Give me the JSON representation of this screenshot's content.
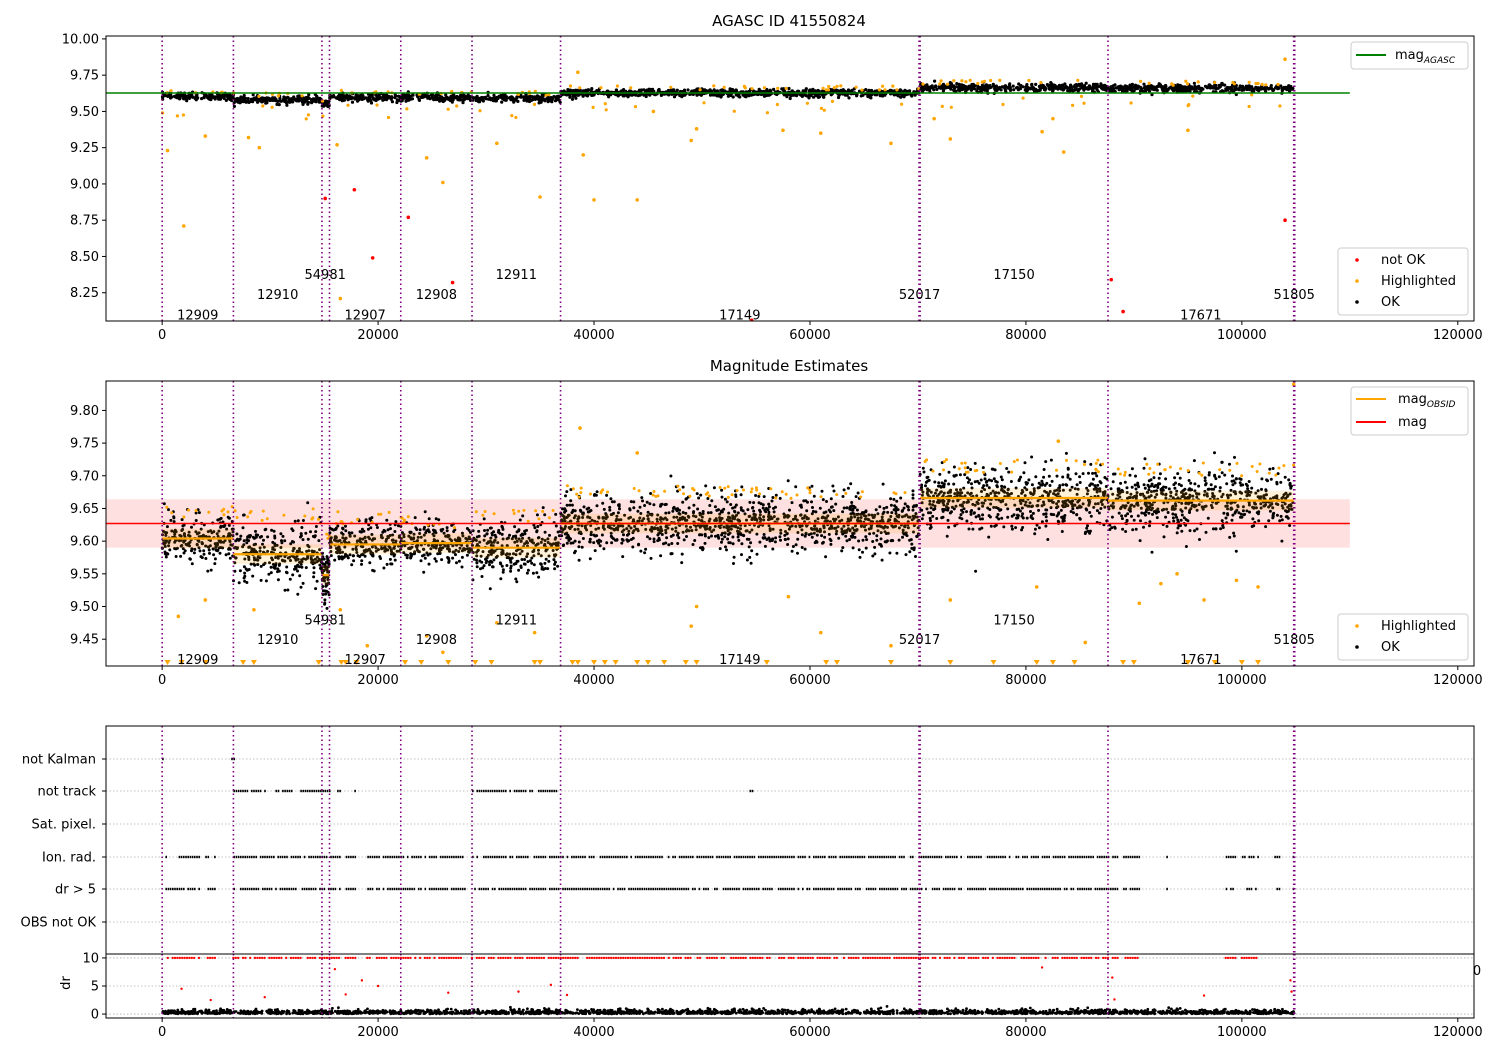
{
  "chart_data": [
    {
      "type": "scatter",
      "title": "AGASC ID 41550824",
      "xlim": [
        -5200,
        121500
      ],
      "ylim": [
        8.055,
        10.02
      ],
      "x_ticks": [
        0,
        20000,
        40000,
        60000,
        80000,
        100000,
        120000
      ],
      "y_ticks": [
        8.25,
        8.5,
        8.75,
        9.0,
        9.25,
        9.5,
        9.75,
        10.0
      ],
      "y_tick_labels": [
        "8.25",
        "8.50",
        "8.75",
        "9.00",
        "9.25",
        "9.50",
        "9.75",
        "10.00"
      ],
      "obsid_boundaries": [
        0,
        6600,
        14800,
        15500,
        22100,
        28700,
        36900,
        70100,
        70200,
        87600,
        104800,
        104900
      ],
      "obsid_labels": [
        {
          "text": "12909",
          "x": 3300,
          "y": 8.1
        },
        {
          "text": "12910",
          "x": 10700,
          "y": 8.24
        },
        {
          "text": "54981",
          "x": 15100,
          "y": 8.38
        },
        {
          "text": "12907",
          "x": 18800,
          "y": 8.1
        },
        {
          "text": "12908",
          "x": 25400,
          "y": 8.24
        },
        {
          "text": "12911",
          "x": 32800,
          "y": 8.38
        },
        {
          "text": "17149",
          "x": 53500,
          "y": 8.1
        },
        {
          "text": "52017",
          "x": 70150,
          "y": 8.24
        },
        {
          "text": "17150",
          "x": 78900,
          "y": 8.38
        },
        {
          "text": "17671",
          "x": 96200,
          "y": 8.1
        },
        {
          "text": "51805",
          "x": 104850,
          "y": 8.24
        }
      ],
      "mag_agasc": 9.627,
      "mag_agasc_xrange": [
        -5200,
        110000
      ],
      "segments": [
        {
          "x0": 0,
          "x1": 6600,
          "mean": 9.605
        },
        {
          "x0": 6600,
          "x1": 14800,
          "mean": 9.58
        },
        {
          "x0": 14800,
          "x1": 15500,
          "mean": 9.55
        },
        {
          "x0": 15500,
          "x1": 22100,
          "mean": 9.595
        },
        {
          "x0": 22100,
          "x1": 28700,
          "mean": 9.595
        },
        {
          "x0": 28700,
          "x1": 36900,
          "mean": 9.59
        },
        {
          "x0": 36900,
          "x1": 70100,
          "mean": 9.627
        },
        {
          "x0": 70200,
          "x1": 87600,
          "mean": 9.665
        },
        {
          "x0": 87600,
          "x1": 104800,
          "mean": 9.66
        }
      ],
      "highlighted_outliers": [
        {
          "x": 500,
          "y": 9.23
        },
        {
          "x": 2000,
          "y": 8.71
        },
        {
          "x": 4000,
          "y": 9.33
        },
        {
          "x": 8000,
          "y": 9.32
        },
        {
          "x": 9000,
          "y": 9.25
        },
        {
          "x": 16500,
          "y": 8.21
        },
        {
          "x": 16200,
          "y": 9.27
        },
        {
          "x": 24500,
          "y": 9.18
        },
        {
          "x": 26000,
          "y": 9.01
        },
        {
          "x": 31000,
          "y": 9.28
        },
        {
          "x": 35000,
          "y": 8.91
        },
        {
          "x": 38500,
          "y": 9.77
        },
        {
          "x": 40000,
          "y": 8.89
        },
        {
          "x": 44000,
          "y": 8.89
        },
        {
          "x": 39000,
          "y": 9.2
        },
        {
          "x": 49000,
          "y": 9.3
        },
        {
          "x": 49500,
          "y": 9.38
        },
        {
          "x": 67500,
          "y": 9.28
        },
        {
          "x": 71500,
          "y": 9.45
        },
        {
          "x": 73000,
          "y": 9.31
        },
        {
          "x": 81500,
          "y": 9.36
        },
        {
          "x": 82500,
          "y": 9.45
        },
        {
          "x": 83500,
          "y": 9.22
        },
        {
          "x": 95000,
          "y": 9.37
        },
        {
          "x": 104000,
          "y": 9.86
        },
        {
          "x": 57500,
          "y": 9.37
        },
        {
          "x": 61000,
          "y": 9.35
        },
        {
          "x": 45500,
          "y": 9.5
        }
      ],
      "not_ok_points": [
        {
          "x": 17800,
          "y": 8.96
        },
        {
          "x": 19500,
          "y": 8.49
        },
        {
          "x": 22800,
          "y": 8.77
        },
        {
          "x": 26900,
          "y": 8.32
        },
        {
          "x": 15100,
          "y": 8.9
        },
        {
          "x": 54600,
          "y": 8.06
        },
        {
          "x": 87900,
          "y": 8.34
        },
        {
          "x": 89000,
          "y": 8.12
        },
        {
          "x": 104000,
          "y": 8.75
        }
      ],
      "legend_top": {
        "position": "top-right",
        "entries": [
          {
            "name": "mag",
            "sub": "AGASC",
            "color": "#008000"
          }
        ]
      },
      "legend_bottom": {
        "position": "lower-right",
        "entries": [
          {
            "name": "not OK",
            "color": "#ff0000"
          },
          {
            "name": "Highlighted",
            "color": "#ffa500"
          },
          {
            "name": "OK",
            "color": "#000000"
          }
        ]
      }
    },
    {
      "type": "scatter",
      "title": "Magnitude Estimates",
      "xlim": [
        -5200,
        121500
      ],
      "ylim": [
        9.409,
        9.845
      ],
      "x_ticks": [
        0,
        20000,
        40000,
        60000,
        80000,
        100000,
        120000
      ],
      "y_ticks": [
        9.45,
        9.5,
        9.55,
        9.6,
        9.65,
        9.7,
        9.75,
        9.8
      ],
      "y_tick_labels": [
        "9.45",
        "9.50",
        "9.55",
        "9.60",
        "9.65",
        "9.70",
        "9.75",
        "9.80"
      ],
      "obsid_labels": [
        {
          "text": "12909",
          "x": 3300,
          "y": 9.42
        },
        {
          "text": "12910",
          "x": 10700,
          "y": 9.45
        },
        {
          "text": "54981",
          "x": 15100,
          "y": 9.48
        },
        {
          "text": "12907",
          "x": 18800,
          "y": 9.42
        },
        {
          "text": "12908",
          "x": 25400,
          "y": 9.45
        },
        {
          "text": "12911",
          "x": 32800,
          "y": 9.48
        },
        {
          "text": "17149",
          "x": 53500,
          "y": 9.42
        },
        {
          "text": "52017",
          "x": 70150,
          "y": 9.45
        },
        {
          "text": "17150",
          "x": 78900,
          "y": 9.48
        },
        {
          "text": "17671",
          "x": 96200,
          "y": 9.42
        },
        {
          "text": "51805",
          "x": 104850,
          "y": 9.45
        }
      ],
      "mag": 9.627,
      "mag_band": [
        9.59,
        9.664
      ],
      "mag_xrange": [
        -5200,
        110000
      ],
      "segments": [
        {
          "x0": 0,
          "x1": 6600,
          "mean": 9.604,
          "lo": 9.575,
          "hi": 9.64
        },
        {
          "x0": 6600,
          "x1": 14800,
          "mean": 9.58,
          "lo": 9.56,
          "hi": 9.635
        },
        {
          "x0": 14800,
          "x1": 15500,
          "mean": 9.548,
          "lo": 9.52,
          "hi": 9.6
        },
        {
          "x0": 15500,
          "x1": 22100,
          "mean": 9.595,
          "lo": 9.57,
          "hi": 9.63
        },
        {
          "x0": 22100,
          "x1": 28700,
          "mean": 9.597,
          "lo": 9.57,
          "hi": 9.625
        },
        {
          "x0": 28700,
          "x1": 36900,
          "mean": 9.59,
          "lo": 9.555,
          "hi": 9.635
        },
        {
          "x0": 36900,
          "x1": 70100,
          "mean": 9.627,
          "lo": 9.59,
          "hi": 9.67
        },
        {
          "x0": 70200,
          "x1": 87600,
          "mean": 9.666,
          "lo": 9.625,
          "hi": 9.71
        },
        {
          "x0": 87600,
          "x1": 104800,
          "mean": 9.662,
          "lo": 9.62,
          "hi": 9.705
        }
      ],
      "highlighted_outliers": [
        {
          "x": 1500,
          "y": 9.485
        },
        {
          "x": 4000,
          "y": 9.51
        },
        {
          "x": 8500,
          "y": 9.495
        },
        {
          "x": 16500,
          "y": 9.495
        },
        {
          "x": 19000,
          "y": 9.44
        },
        {
          "x": 24500,
          "y": 9.455
        },
        {
          "x": 26000,
          "y": 9.43
        },
        {
          "x": 31000,
          "y": 9.475
        },
        {
          "x": 34500,
          "y": 9.46
        },
        {
          "x": 38700,
          "y": 9.773
        },
        {
          "x": 44000,
          "y": 9.735
        },
        {
          "x": 49000,
          "y": 9.47
        },
        {
          "x": 49500,
          "y": 9.5
        },
        {
          "x": 58000,
          "y": 9.515
        },
        {
          "x": 61000,
          "y": 9.46
        },
        {
          "x": 67500,
          "y": 9.44
        },
        {
          "x": 73000,
          "y": 9.51
        },
        {
          "x": 81000,
          "y": 9.53
        },
        {
          "x": 83000,
          "y": 9.753
        },
        {
          "x": 85500,
          "y": 9.445
        },
        {
          "x": 90500,
          "y": 9.505
        },
        {
          "x": 92500,
          "y": 9.535
        },
        {
          "x": 94000,
          "y": 9.55
        },
        {
          "x": 96500,
          "y": 9.51
        },
        {
          "x": 99500,
          "y": 9.54
        },
        {
          "x": 101500,
          "y": 9.53
        },
        {
          "x": 104800,
          "y": 9.84
        }
      ],
      "lower_limit_x": [
        500,
        1800,
        4000,
        7500,
        8500,
        14500,
        16600,
        17000,
        18000,
        22500,
        24000,
        26500,
        29000,
        30500,
        34500,
        35000,
        38000,
        38500,
        40000,
        41000,
        42000,
        44000,
        45000,
        46500,
        48500,
        49500,
        56000,
        61500,
        62500,
        67500,
        73000,
        77000,
        81000,
        82500,
        84500,
        89000,
        90000,
        95000,
        97500,
        100000,
        101500
      ],
      "legend_top": {
        "position": "top-right",
        "entries": [
          {
            "name": "mag",
            "sub": "OBSID",
            "color": "#ffa500"
          },
          {
            "name": "mag",
            "color": "#ff0000"
          }
        ]
      },
      "legend_bottom": {
        "position": "lower-right",
        "entries": [
          {
            "name": "Highlighted",
            "color": "#ffa500"
          },
          {
            "name": "OK",
            "color": "#000000"
          }
        ]
      }
    },
    {
      "type": "scatter",
      "xlim": [
        -5200,
        121500
      ],
      "flag_rows": [
        "not Kalman",
        "not track",
        "Sat. pixel.",
        "Ion. rad.",
        "dr > 5",
        "OBS not OK"
      ],
      "flag_ranges": {
        "not Kalman": [
          [
            0,
            200
          ],
          [
            6400,
            6700
          ]
        ],
        "not track": [
          [
            6600,
            9500
          ],
          [
            10500,
            12000
          ],
          [
            12800,
            15500
          ],
          [
            16200,
            16600
          ],
          [
            17800,
            18000
          ],
          [
            24800,
            25000
          ],
          [
            28700,
            36500
          ],
          [
            54400,
            54800
          ]
        ],
        "Sat. pixel.": [],
        "Ion. rad.": [
          [
            300,
            3500
          ],
          [
            4000,
            5000
          ],
          [
            6600,
            16500
          ],
          [
            17000,
            18000
          ],
          [
            19000,
            28000
          ],
          [
            28700,
            88500
          ],
          [
            89000,
            90500
          ],
          [
            93000,
            93200
          ],
          [
            98500,
            99500
          ],
          [
            100000,
            101500
          ],
          [
            103000,
            103500
          ],
          [
            104700,
            104900
          ]
        ],
        "dr > 5": [
          [
            300,
            3500
          ],
          [
            4000,
            5000
          ],
          [
            6600,
            16500
          ],
          [
            17000,
            18000
          ],
          [
            19000,
            28000
          ],
          [
            28700,
            88500
          ],
          [
            89000,
            90500
          ],
          [
            93000,
            93200
          ],
          [
            98500,
            99500
          ],
          [
            100000,
            101500
          ],
          [
            103000,
            103500
          ],
          [
            104700,
            104900
          ]
        ],
        "OBS not OK": []
      },
      "dr_ylim": [
        -0.7,
        10.7
      ],
      "dr_ticks": [
        0,
        5,
        10
      ],
      "dr_label": "dr",
      "dr_cap_ranges": [
        [
          300,
          3500
        ],
        [
          4000,
          5000
        ],
        [
          6600,
          16500
        ],
        [
          17000,
          18000
        ],
        [
          19000,
          28000
        ],
        [
          28700,
          88500
        ],
        [
          89000,
          90500
        ],
        [
          98500,
          99500
        ],
        [
          100000,
          101500
        ]
      ],
      "dr_extra": [
        {
          "x": 1800,
          "y": 4.5
        },
        {
          "x": 4500,
          "y": 2.5
        },
        {
          "x": 9500,
          "y": 3.0
        },
        {
          "x": 16000,
          "y": 8.0
        },
        {
          "x": 17000,
          "y": 3.5
        },
        {
          "x": 18500,
          "y": 6.0
        },
        {
          "x": 20000,
          "y": 5.0
        },
        {
          "x": 26500,
          "y": 3.8
        },
        {
          "x": 33000,
          "y": 4.0
        },
        {
          "x": 36000,
          "y": 5.2
        },
        {
          "x": 37500,
          "y": 3.4
        },
        {
          "x": 88000,
          "y": 6.5
        },
        {
          "x": 88200,
          "y": 2.6
        },
        {
          "x": 96500,
          "y": 3.3
        },
        {
          "x": 104500,
          "y": 6.0
        },
        {
          "x": 104600,
          "y": 4.0
        },
        {
          "x": 81500,
          "y": 8.3
        }
      ],
      "x_ticks": [
        0,
        20000,
        40000,
        60000,
        80000,
        100000,
        120000
      ],
      "stray_tick_label": "0"
    }
  ]
}
